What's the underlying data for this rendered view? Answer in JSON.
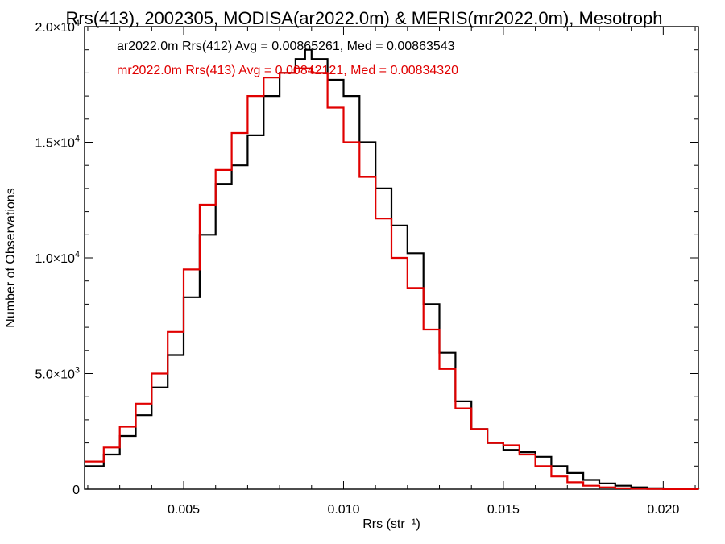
{
  "chart_data": {
    "type": "line",
    "step": true,
    "title": "Rrs(413), 2002305, MODISA(ar2022.0m) & MERIS(mr2022.0m), Mesotroph",
    "xlabel": "Rrs (str⁻¹)",
    "ylabel": "Number of Observations",
    "xlim": [
      0.0019,
      0.0211
    ],
    "ylim": [
      0,
      20000
    ],
    "xticks": [
      0.005,
      0.01,
      0.015,
      0.02
    ],
    "xtick_labels": [
      "0.005",
      "0.010",
      "0.015",
      "0.020"
    ],
    "yticks": [
      0,
      5000,
      10000,
      15000,
      20000
    ],
    "ytick_labels": [
      {
        "mantissa": "0",
        "exp": ""
      },
      {
        "mantissa": "5.0×10",
        "exp": "3"
      },
      {
        "mantissa": "1.0×10",
        "exp": "4"
      },
      {
        "mantissa": "1.5×10",
        "exp": "4"
      },
      {
        "mantissa": "2.0×10",
        "exp": "4"
      }
    ],
    "grid": false,
    "legend_position": "top-left",
    "series": [
      {
        "name": "ar2022.0m Rrs(412) Avg = 0.00865261, Med = 0.00863543",
        "color": "#000000",
        "x": [
          0.0019,
          0.0025,
          0.003,
          0.0035,
          0.004,
          0.0045,
          0.005,
          0.0055,
          0.006,
          0.0065,
          0.007,
          0.0075,
          0.008,
          0.0085,
          0.0088,
          0.009,
          0.0095,
          0.01,
          0.0105,
          0.011,
          0.0115,
          0.012,
          0.0125,
          0.013,
          0.0135,
          0.014,
          0.0145,
          0.015,
          0.0155,
          0.016,
          0.0165,
          0.017,
          0.0175,
          0.018,
          0.0185,
          0.019,
          0.0195,
          0.02,
          0.0211
        ],
        "values": [
          1000,
          1500,
          2300,
          3200,
          4400,
          5800,
          8300,
          11000,
          13200,
          14000,
          15300,
          17000,
          18000,
          18600,
          19000,
          18600,
          17700,
          17000,
          15000,
          13000,
          11400,
          10200,
          8000,
          5900,
          3800,
          2600,
          2000,
          1700,
          1600,
          1400,
          1000,
          700,
          400,
          250,
          150,
          80,
          40,
          20,
          10
        ]
      },
      {
        "name": "mr2022.0m Rrs(413) Avg = 0.00842121, Med = 0.00834320",
        "color": "#e00000",
        "x": [
          0.0019,
          0.0025,
          0.003,
          0.0035,
          0.004,
          0.0045,
          0.005,
          0.0055,
          0.006,
          0.0065,
          0.007,
          0.0075,
          0.008,
          0.0085,
          0.0088,
          0.009,
          0.0095,
          0.01,
          0.0105,
          0.011,
          0.0115,
          0.012,
          0.0125,
          0.013,
          0.0135,
          0.014,
          0.0145,
          0.015,
          0.0155,
          0.016,
          0.0165,
          0.017,
          0.0175,
          0.018,
          0.0185,
          0.019,
          0.0195,
          0.02,
          0.0211
        ],
        "values": [
          1200,
          1800,
          2700,
          3700,
          5000,
          6800,
          9500,
          12300,
          13800,
          15400,
          17000,
          17800,
          18000,
          18200,
          18200,
          18000,
          16500,
          15000,
          13500,
          11700,
          10000,
          8700,
          6900,
          5200,
          3500,
          2600,
          2000,
          1900,
          1500,
          1000,
          550,
          300,
          150,
          80,
          40,
          20,
          10,
          5,
          0
        ]
      }
    ]
  }
}
